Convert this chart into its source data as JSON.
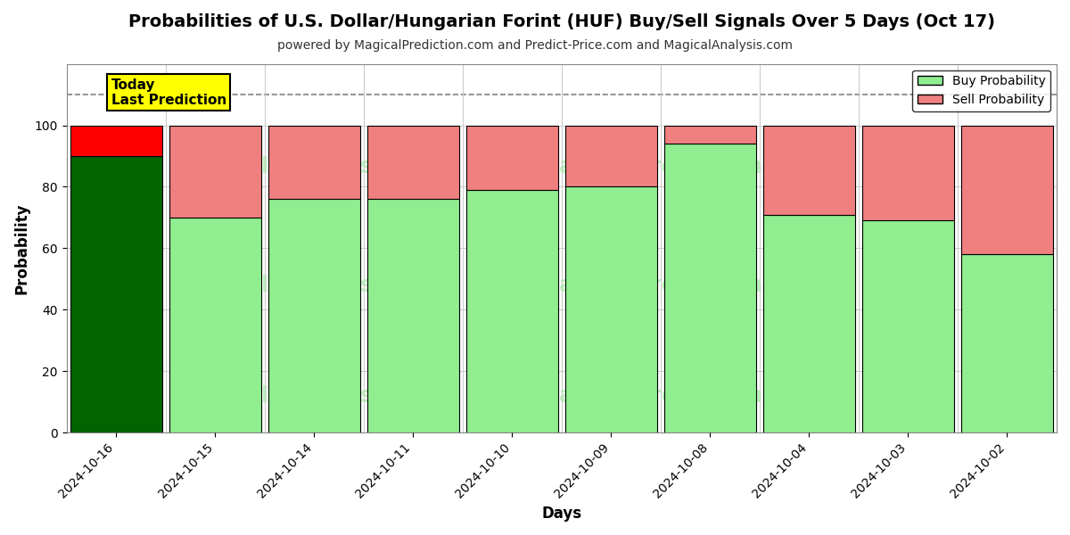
{
  "title": "Probabilities of U.S. Dollar/Hungarian Forint (HUF) Buy/Sell Signals Over 5 Days (Oct 17)",
  "subtitle": "powered by MagicalPrediction.com and Predict-Price.com and MagicalAnalysis.com",
  "xlabel": "Days",
  "ylabel": "Probability",
  "dates": [
    "2024-10-16",
    "2024-10-15",
    "2024-10-14",
    "2024-10-11",
    "2024-10-10",
    "2024-10-09",
    "2024-10-08",
    "2024-10-04",
    "2024-10-03",
    "2024-10-02"
  ],
  "buy_values": [
    90,
    70,
    76,
    76,
    79,
    80,
    94,
    71,
    69,
    58
  ],
  "sell_values": [
    10,
    30,
    24,
    24,
    21,
    20,
    6,
    29,
    31,
    42
  ],
  "today_bar_index": 0,
  "buy_color_today": "#006400",
  "sell_color_today": "#FF0000",
  "buy_color_other": "#90EE90",
  "sell_color_other": "#F08080",
  "bar_edge_color": "#000000",
  "ylim": [
    0,
    120
  ],
  "yticks": [
    0,
    20,
    40,
    60,
    80,
    100
  ],
  "dashed_line_y": 110,
  "background_color": "#ffffff",
  "grid_color": "#cccccc",
  "watermark_color": "#90EE90",
  "legend_buy_label": "Buy Probability",
  "legend_sell_label": "Sell Probability",
  "today_box_text": "Today\nLast Prediction",
  "today_box_facecolor": "#FFFF00",
  "today_box_edgecolor": "#000000",
  "bar_width": 0.93,
  "title_fontsize": 14,
  "subtitle_fontsize": 10
}
